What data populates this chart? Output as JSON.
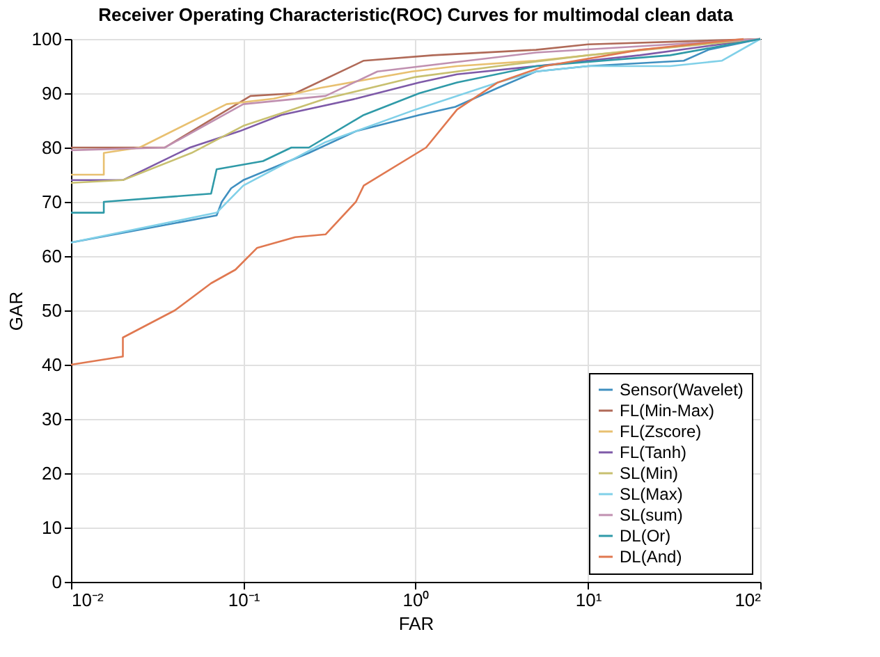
{
  "chart_data": {
    "type": "line",
    "title": "Receiver Operating Characteristic(ROC) Curves for multimodal clean data",
    "xlabel": "FAR",
    "ylabel": "GAR",
    "log": "x",
    "xlim": [
      0.01,
      100
    ],
    "xticks": [
      {
        "value": 0.01,
        "label": "10⁻²"
      },
      {
        "value": 0.1,
        "label": "10⁻¹"
      },
      {
        "value": 1,
        "label": "10⁰"
      },
      {
        "value": 10,
        "label": "10¹"
      },
      {
        "value": 100,
        "label": "10²"
      }
    ],
    "ylim": [
      0,
      100
    ],
    "yticks": [
      0,
      10,
      20,
      30,
      40,
      50,
      60,
      70,
      80,
      90,
      100
    ],
    "grid": true,
    "legend": "bottom right",
    "line_style": "solid",
    "marker": "none",
    "series": [
      {
        "name": "Sensor(Wavelet)",
        "color": "#3f8fc0",
        "x": [
          0.01,
          0.07,
          0.075,
          0.085,
          0.1,
          0.24,
          0.45,
          1.05,
          1.7,
          3,
          5,
          10,
          36,
          50,
          100
        ],
        "values": [
          62.5,
          67.5,
          70,
          72.5,
          74,
          79,
          83,
          86,
          87.5,
          91,
          94,
          95,
          96,
          98,
          100
        ]
      },
      {
        "name": "FL(Min-Max)",
        "color": "#b06a58",
        "x": [
          0.01,
          0.035,
          0.11,
          0.2,
          0.5,
          1.26,
          5,
          10,
          100
        ],
        "values": [
          80,
          80,
          89.5,
          90,
          96,
          97,
          98,
          99,
          100
        ]
      },
      {
        "name": "FL(Zscore)",
        "color": "#e8c070",
        "x": [
          0.01,
          0.0155,
          0.0155,
          0.025,
          0.08,
          0.15,
          0.28,
          0.95,
          1.74,
          5,
          20,
          100
        ],
        "values": [
          75,
          75,
          79,
          80,
          88,
          89,
          91,
          94,
          95,
          96,
          98,
          100
        ]
      },
      {
        "name": "FL(Tanh)",
        "color": "#7e5aa8",
        "x": [
          0.01,
          0.02,
          0.049,
          0.095,
          0.166,
          0.45,
          1.05,
          1.74,
          5,
          20,
          100
        ],
        "values": [
          74,
          74,
          80,
          83,
          86,
          89,
          92,
          93.5,
          95,
          97,
          100
        ]
      },
      {
        "name": "SL(Min)",
        "color": "#c8c070",
        "x": [
          0.01,
          0.02,
          0.05,
          0.1,
          0.3,
          1,
          3,
          10,
          100
        ],
        "values": [
          73.5,
          74,
          79,
          84,
          89,
          93,
          95,
          97,
          100
        ]
      },
      {
        "name": "SL(Max)",
        "color": "#80d0e8",
        "x": [
          0.01,
          0.07,
          0.1,
          0.3,
          1,
          3,
          5,
          10,
          30,
          60,
          100
        ],
        "values": [
          62.5,
          68,
          73,
          81,
          87,
          92,
          94,
          95,
          95,
          96,
          100
        ]
      },
      {
        "name": "SL(sum)",
        "color": "#c090b0",
        "x": [
          0.01,
          0.035,
          0.1,
          0.3,
          0.6,
          2,
          5,
          100
        ],
        "values": [
          79.5,
          80,
          88,
          89.5,
          94,
          96,
          97.5,
          100
        ]
      },
      {
        "name": "DL(Or)",
        "color": "#2f9aa8",
        "x": [
          0.01,
          0.0155,
          0.0155,
          0.065,
          0.07,
          0.13,
          0.19,
          0.24,
          0.5,
          1.05,
          1.74,
          5,
          30,
          100
        ],
        "values": [
          68,
          68,
          70,
          71.5,
          76,
          77.5,
          80,
          80,
          86,
          90,
          92,
          95,
          97,
          100
        ]
      },
      {
        "name": "DL(And)",
        "color": "#e07850",
        "x": [
          0.01,
          0.02,
          0.02,
          0.04,
          0.065,
          0.09,
          0.12,
          0.2,
          0.3,
          0.45,
          0.5,
          1.15,
          1.74,
          3,
          5.6,
          20,
          80
        ],
        "values": [
          40,
          41.5,
          45,
          50,
          55,
          57.5,
          61.5,
          63.5,
          64,
          70,
          73,
          80,
          87,
          92,
          95,
          98,
          100
        ]
      }
    ]
  }
}
